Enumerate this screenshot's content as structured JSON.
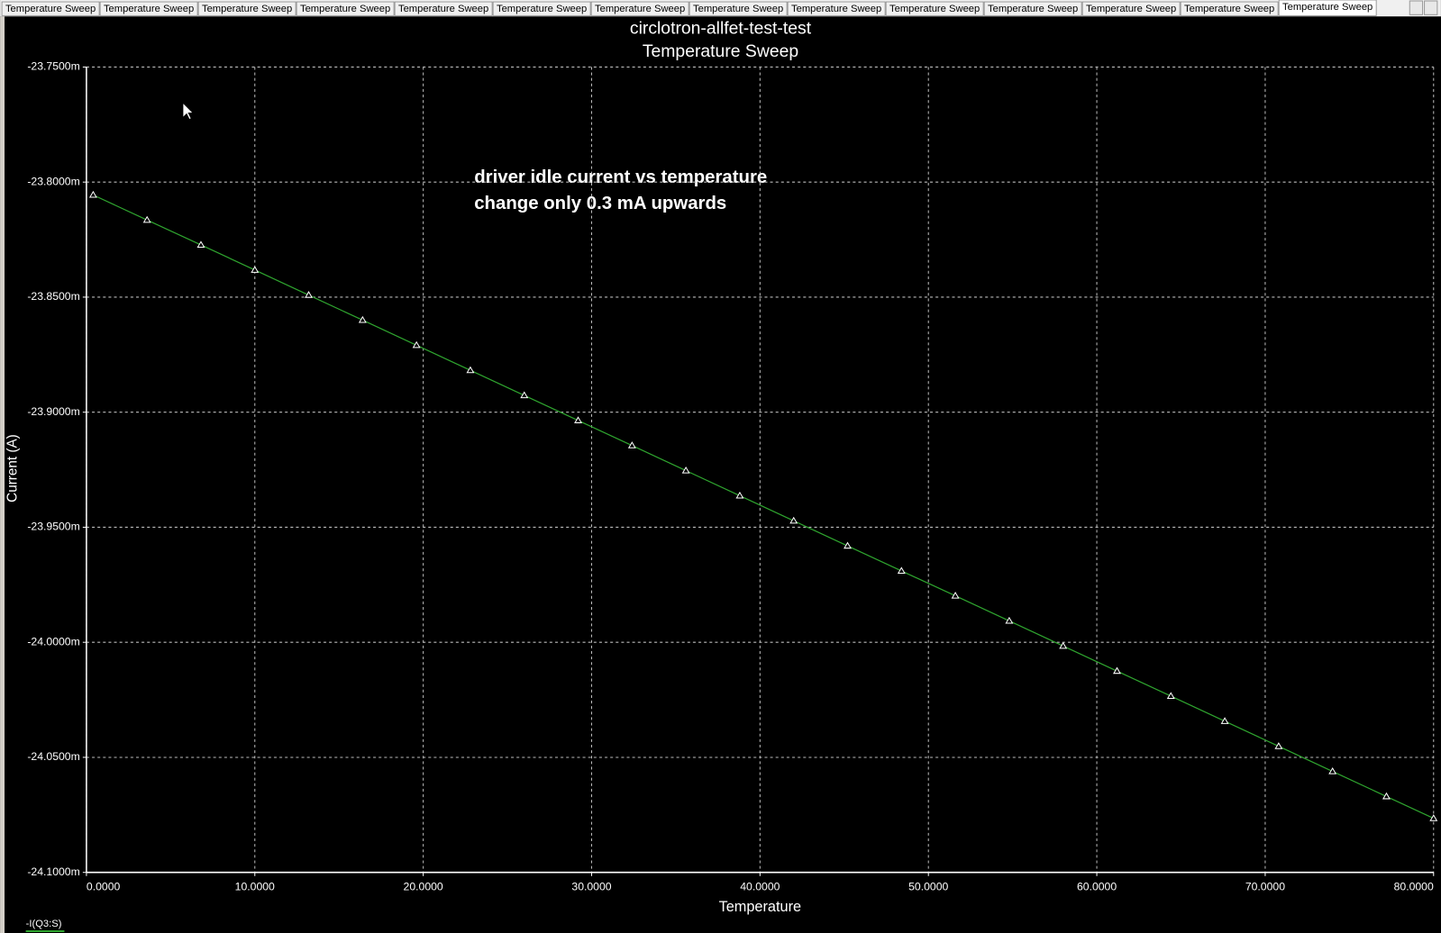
{
  "tabs": [
    "Temperature Sweep",
    "Temperature Sweep",
    "Temperature Sweep",
    "Temperature Sweep",
    "Temperature Sweep",
    "Temperature Sweep",
    "Temperature Sweep",
    "Temperature Sweep",
    "Temperature Sweep",
    "Temperature Sweep",
    "Temperature Sweep",
    "Temperature Sweep",
    "Temperature Sweep",
    "Temperature Sweep"
  ],
  "chart_data": {
    "type": "line",
    "title": "circlotron-allfet-test-test",
    "subtitle": "Temperature Sweep",
    "xlabel": "Temperature",
    "ylabel": "Current (A)",
    "annotations": [
      "driver idle current vs temperature",
      "change only 0.3 mA upwards"
    ],
    "grid": true,
    "xlim": [
      0,
      80
    ],
    "ylim": [
      -24.1,
      -23.75
    ],
    "xticks": [
      {
        "value": 0,
        "label": "0.0000"
      },
      {
        "value": 10,
        "label": "10.0000"
      },
      {
        "value": 20,
        "label": "20.0000"
      },
      {
        "value": 30,
        "label": "30.0000"
      },
      {
        "value": 40,
        "label": "40.0000"
      },
      {
        "value": 50,
        "label": "50.0000"
      },
      {
        "value": 60,
        "label": "60.0000"
      },
      {
        "value": 70,
        "label": "70.0000"
      },
      {
        "value": 80,
        "label": "80.0000"
      }
    ],
    "yticks": [
      {
        "value": -23.75,
        "label": "-23.7500m"
      },
      {
        "value": -23.8,
        "label": "-23.8000m"
      },
      {
        "value": -23.85,
        "label": "-23.8500m"
      },
      {
        "value": -23.9,
        "label": "-23.9000m"
      },
      {
        "value": -23.95,
        "label": "-23.9500m"
      },
      {
        "value": -24.0,
        "label": "-24.0000m"
      },
      {
        "value": -24.05,
        "label": "-24.0500m"
      },
      {
        "value": -24.1,
        "label": "-24.1000m"
      }
    ],
    "x": [
      0.4,
      3.6,
      6.8,
      10.0,
      13.2,
      16.4,
      19.6,
      22.8,
      26.0,
      29.2,
      32.4,
      35.6,
      38.8,
      42.0,
      45.2,
      48.4,
      51.6,
      54.8,
      58.0,
      61.2,
      64.4,
      67.6,
      70.8,
      74.0,
      77.2,
      80.0
    ],
    "series": [
      {
        "name": "-I(Q3:S)",
        "color": "#2fa52f",
        "values": [
          -23.8056,
          -23.8165,
          -23.8273,
          -23.8382,
          -23.8491,
          -23.86,
          -23.8709,
          -23.8818,
          -23.8927,
          -23.9036,
          -23.9145,
          -23.9254,
          -23.9363,
          -23.9472,
          -23.9581,
          -23.969,
          -23.9798,
          -23.9907,
          -24.0016,
          -24.0125,
          -24.0234,
          -24.0343,
          -24.0452,
          -24.0561,
          -24.067,
          -24.0765
        ]
      }
    ]
  }
}
